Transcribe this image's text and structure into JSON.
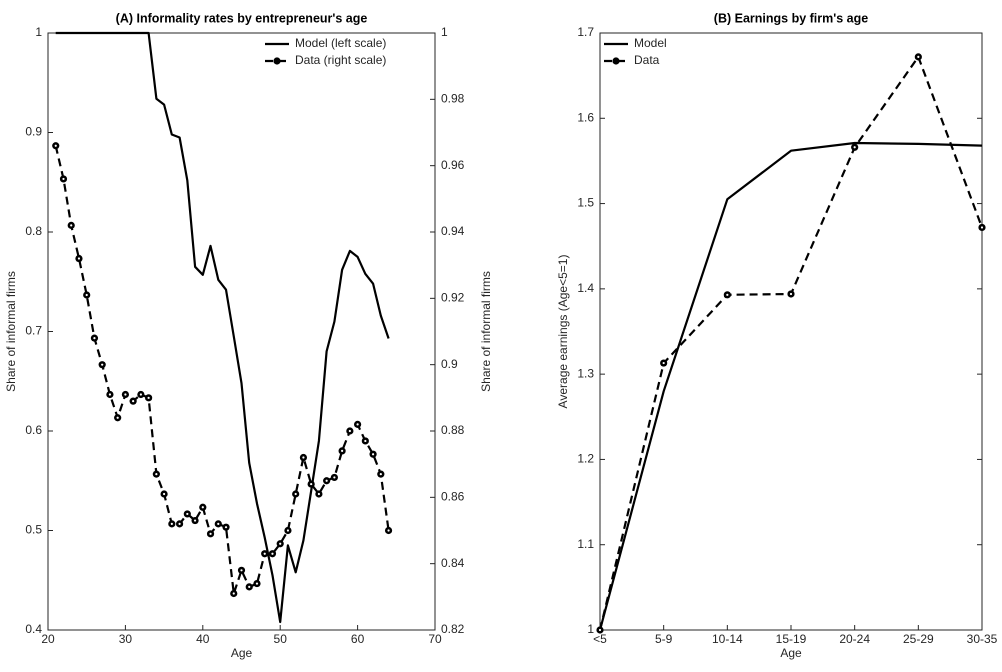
{
  "chart_data": [
    {
      "type": "line",
      "title": "(A) Informality rates by entrepreneur's age",
      "xlabel": "Age",
      "ylabel": "Share of informal firms",
      "y2label": "Share of informal firms",
      "x": [
        21,
        22,
        23,
        24,
        25,
        26,
        27,
        28,
        29,
        30,
        31,
        32,
        33,
        34,
        35,
        36,
        37,
        38,
        39,
        40,
        41,
        42,
        43,
        44,
        45,
        46,
        47,
        48,
        49,
        50,
        51,
        52,
        53,
        54,
        55,
        56,
        57,
        58,
        59,
        60,
        61,
        62,
        63,
        64
      ],
      "xlim": [
        20,
        70
      ],
      "xticks": [
        20,
        30,
        40,
        50,
        60,
        70
      ],
      "ylim": [
        0.4,
        1
      ],
      "yticks": [
        0.4,
        0.5,
        0.6,
        0.7,
        0.8,
        0.9,
        1
      ],
      "y2lim": [
        0.82,
        1
      ],
      "y2ticks": [
        0.82,
        0.84,
        0.86,
        0.88,
        0.9,
        0.92,
        0.94,
        0.96,
        0.98,
        1
      ],
      "legend_position": "upper right",
      "series": [
        {
          "name": "Model (left scale)",
          "color": "#000000",
          "line_style": "solid",
          "values": [
            1,
            1,
            1,
            1,
            1,
            1,
            1,
            1,
            1,
            1,
            1,
            1,
            1,
            0.934,
            0.928,
            0.898,
            0.895,
            0.852,
            0.765,
            0.757,
            0.786,
            0.752,
            0.742,
            0.695,
            0.648,
            0.568,
            0.527,
            0.493,
            0.455,
            0.408,
            0.485,
            0.458,
            0.49,
            0.54,
            0.59,
            0.68,
            0.71,
            0.762,
            0.781,
            0.775,
            0.758,
            0.748,
            0.716,
            0.693
          ]
        },
        {
          "name": "Data (right scale)",
          "color": "#000000",
          "line_style": "dashed",
          "marker": "circle",
          "axis": "y2",
          "values": [
            0.966,
            0.956,
            0.942,
            0.932,
            0.921,
            0.908,
            0.9,
            0.891,
            0.884,
            0.891,
            0.889,
            0.891,
            0.89,
            0.867,
            0.861,
            0.852,
            0.852,
            0.855,
            0.853,
            0.857,
            0.849,
            0.852,
            0.851,
            0.831,
            0.838,
            0.833,
            0.834,
            0.843,
            0.843,
            0.846,
            0.85,
            0.861,
            0.872,
            0.864,
            0.861,
            0.865,
            0.866,
            0.874,
            0.88,
            0.882,
            0.877,
            0.873,
            0.867,
            0.85
          ]
        }
      ]
    },
    {
      "type": "line",
      "title": "(B) Earnings by firm's age",
      "xlabel": "Age",
      "ylabel": "Average earnings (Age<5=1)",
      "categories": [
        "<5",
        "5-9",
        "10-14",
        "15-19",
        "20-24",
        "25-29",
        "30-35"
      ],
      "ylim": [
        1,
        1.7
      ],
      "yticks": [
        1,
        1.1,
        1.2,
        1.3,
        1.4,
        1.5,
        1.6,
        1.7
      ],
      "legend_position": "upper left",
      "series": [
        {
          "name": "Model",
          "color": "#000000",
          "line_style": "solid",
          "values": [
            1,
            1.28,
            1.505,
            1.562,
            1.571,
            1.57,
            1.568
          ]
        },
        {
          "name": "Data",
          "color": "#000000",
          "line_style": "dashed",
          "marker": "circle",
          "values": [
            1,
            1.313,
            1.393,
            1.394,
            1.566,
            1.672,
            1.472
          ]
        }
      ]
    }
  ]
}
